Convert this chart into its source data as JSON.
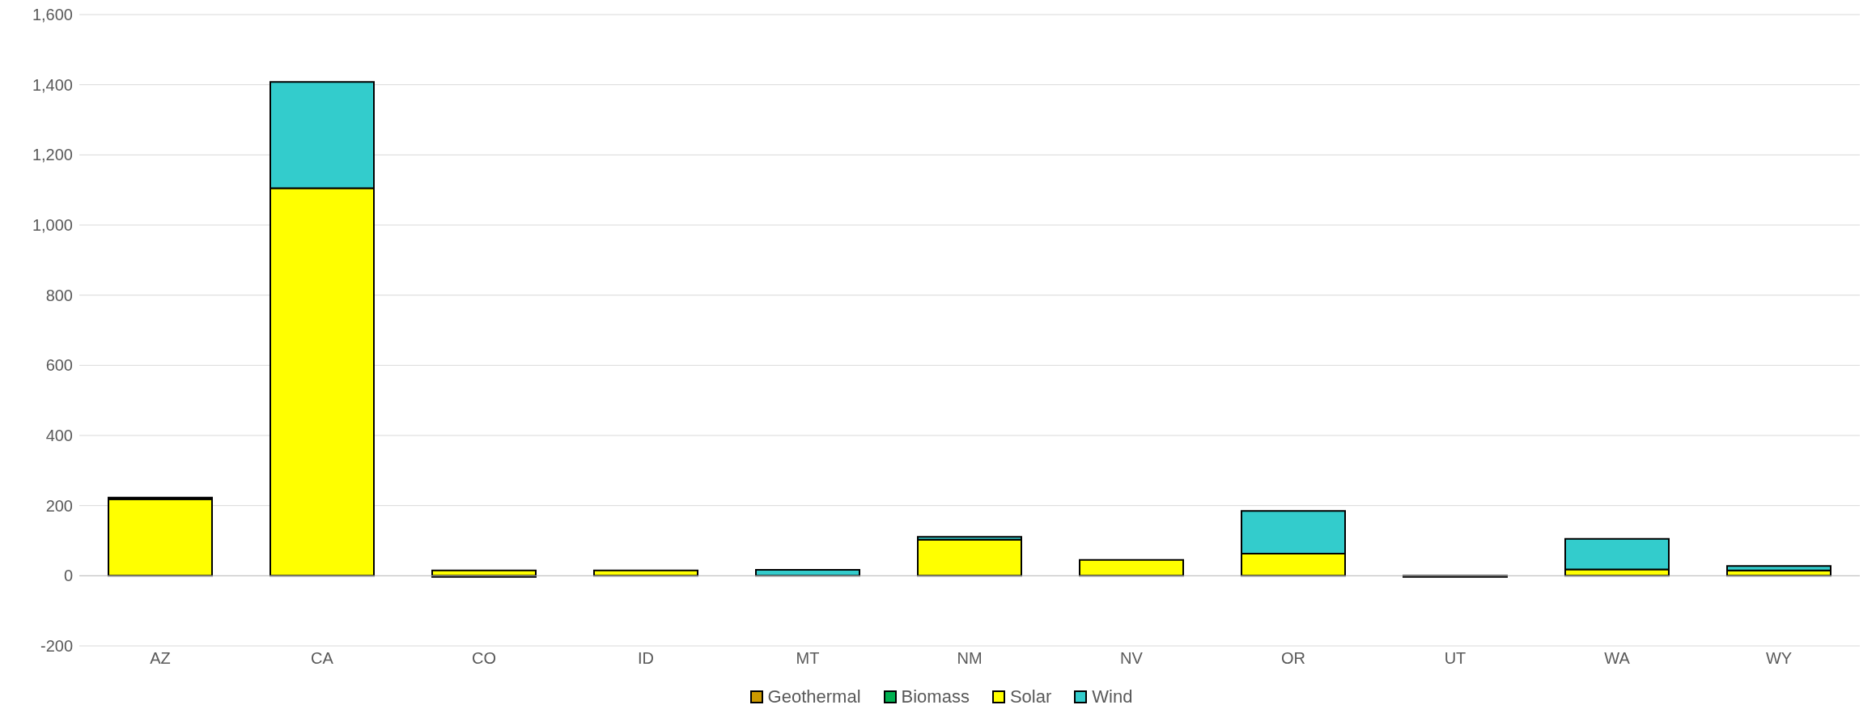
{
  "chart_data": {
    "type": "bar",
    "stacked": true,
    "categories": [
      "AZ",
      "CA",
      "CO",
      "ID",
      "MT",
      "NM",
      "NV",
      "OR",
      "UT",
      "WA",
      "WY"
    ],
    "series": [
      {
        "name": "Geothermal",
        "color": "#cc9900",
        "values": [
          0,
          0,
          -3,
          0,
          0,
          0,
          0,
          0,
          -3,
          0,
          0
        ]
      },
      {
        "name": "Biomass",
        "color": "#00b050",
        "values": [
          0,
          null,
          0,
          0,
          0,
          0,
          0,
          0,
          0,
          0,
          0
        ]
      },
      {
        "name": "Solar",
        "color": "#ffff00",
        "values": [
          218,
          1105,
          15,
          15,
          0,
          103,
          45,
          63,
          0,
          18,
          15
        ]
      },
      {
        "name": "Wind",
        "color": "#33cccc",
        "values": [
          5,
          303,
          0,
          0,
          17,
          8,
          0,
          122,
          0,
          87,
          13
        ]
      }
    ],
    "ylim": [
      -200,
      1600
    ],
    "yticks": [
      {
        "value": -200,
        "label": "-200"
      },
      0,
      200,
      400,
      600,
      800,
      {
        "value": 1000,
        "label": "1,000"
      },
      {
        "value": 1200,
        "label": "1,200"
      },
      {
        "value": 1400,
        "label": "1,400"
      },
      {
        "value": 1600,
        "label": "1,600"
      }
    ],
    "grid": "y",
    "legend": "bottom"
  }
}
